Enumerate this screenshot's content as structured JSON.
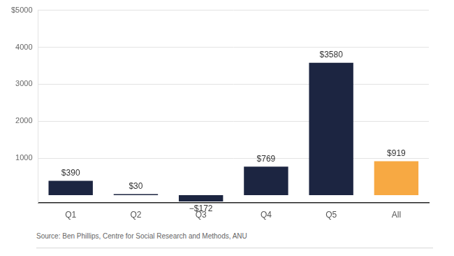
{
  "chart_data": {
    "type": "bar",
    "categories": [
      "Q1",
      "Q2",
      "Q3",
      "Q4",
      "Q5",
      "All"
    ],
    "values": [
      390,
      30,
      -172,
      769,
      3580,
      919
    ],
    "value_labels": [
      "$390",
      "$30",
      "−$172",
      "$769",
      "$3580",
      "$919"
    ],
    "colors": [
      "#1c2541",
      "#1c2541",
      "#1c2541",
      "#1c2541",
      "#1c2541",
      "#f7a943"
    ],
    "ylim": [
      -200,
      5000
    ],
    "yticks": [
      1000,
      2000,
      3000,
      4000,
      {
        "value": 5000,
        "label": "$5000"
      }
    ],
    "grid": true,
    "data_labels": true,
    "source": "Source: Ben Phillips, Centre for Social Research and Methods, ANU"
  }
}
